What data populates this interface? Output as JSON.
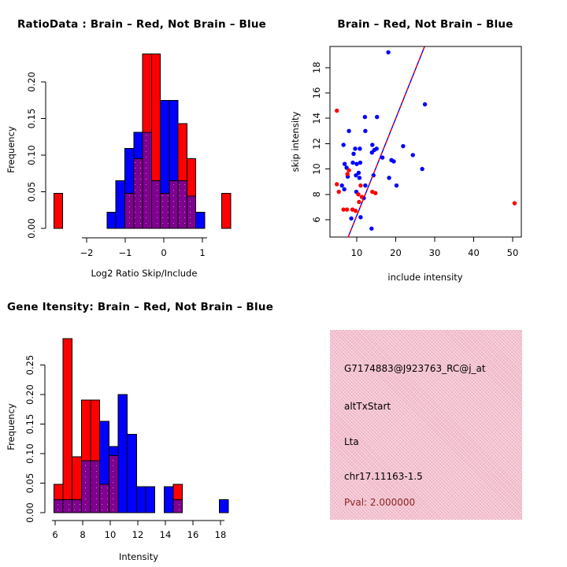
{
  "figure": {
    "background": "#FFFFFF",
    "legend_note": "Brain = red, Not Brain = blue, overlap shown purple"
  },
  "chart_data": [
    {
      "id": "ratio_histogram",
      "type": "bar",
      "subtype": "overlaid-histogram",
      "title": "RatioData : Brain – Red, Not Brain – Blue",
      "xlabel": "Log2 Ratio Skip/Include",
      "ylabel": "Frequency",
      "xlim": [
        -2.95,
        1.85
      ],
      "ylim": [
        0,
        0.24
      ],
      "x_ticks": [
        "−2",
        "−1",
        "0",
        "1"
      ],
      "x_tick_values": [
        -2,
        -1,
        0,
        1
      ],
      "y_ticks": [
        "0.00",
        "0.05",
        "0.10",
        "0.15",
        "0.20"
      ],
      "y_tick_values": [
        0,
        0.05,
        0.1,
        0.15,
        0.2
      ],
      "colors": {
        "red": "#FF0000",
        "blue": "#0000FF",
        "overlap": "#800090"
      },
      "bins": [
        {
          "x0": -2.85,
          "x1": -2.62,
          "red": 0.048,
          "blue": 0
        },
        {
          "x0": -1.47,
          "x1": -1.24,
          "red": 0,
          "blue": 0.022
        },
        {
          "x0": -1.24,
          "x1": -1.01,
          "red": 0,
          "blue": 0.065
        },
        {
          "x0": -1.01,
          "x1": -0.78,
          "red": 0.048,
          "blue": 0.109
        },
        {
          "x0": -0.78,
          "x1": -0.55,
          "red": 0.095,
          "blue": 0.131
        },
        {
          "x0": -0.55,
          "x1": -0.32,
          "red": 0.238,
          "blue": 0.131
        },
        {
          "x0": -0.32,
          "x1": -0.09,
          "red": 0.238,
          "blue": 0.065
        },
        {
          "x0": -0.09,
          "x1": 0.14,
          "red": 0.048,
          "blue": 0.175
        },
        {
          "x0": 0.14,
          "x1": 0.37,
          "red": 0.065,
          "blue": 0.175
        },
        {
          "x0": 0.37,
          "x1": 0.6,
          "red": 0.143,
          "blue": 0.065
        },
        {
          "x0": 0.6,
          "x1": 0.83,
          "red": 0.095,
          "blue": 0.044
        },
        {
          "x0": 0.83,
          "x1": 1.06,
          "red": 0,
          "blue": 0.022
        },
        {
          "x0": 1.5,
          "x1": 1.73,
          "red": 0.048,
          "blue": 0
        }
      ]
    },
    {
      "id": "intensity_scatter",
      "type": "scatter",
      "title": "Brain – Red, Not Brain – Blue",
      "xlabel": "include intensity",
      "ylabel": "skip intensity",
      "xlim": [
        3,
        53
      ],
      "ylim": [
        4.6,
        19.7
      ],
      "x_ticks": [
        "10",
        "20",
        "30",
        "40",
        "50"
      ],
      "x_tick_values": [
        10,
        20,
        30,
        40,
        50
      ],
      "y_ticks": [
        "6",
        "8",
        "10",
        "12",
        "14",
        "16",
        "18"
      ],
      "y_tick_values": [
        6,
        8,
        10,
        12,
        14,
        16,
        18
      ],
      "colors": {
        "red": "#FF0000",
        "blue": "#0000FF"
      },
      "series": [
        {
          "name": "Not Brain",
          "color": "#0000FF",
          "points": [
            [
              18.1,
              19.2
            ],
            [
              27.5,
              15.1
            ],
            [
              12.1,
              14.1
            ],
            [
              15.2,
              14.1
            ],
            [
              8,
              13
            ],
            [
              12.2,
              13
            ],
            [
              6.6,
              11.9
            ],
            [
              14,
              11.9
            ],
            [
              21.9,
              11.8
            ],
            [
              9.6,
              11.6
            ],
            [
              10.8,
              11.6
            ],
            [
              15.1,
              11.6
            ],
            [
              14.5,
              11.5
            ],
            [
              13.9,
              11.3
            ],
            [
              9.2,
              11.2
            ],
            [
              24.4,
              11.1
            ],
            [
              16.6,
              10.9
            ],
            [
              18.9,
              10.7
            ],
            [
              19.5,
              10.6
            ],
            [
              9,
              10.5
            ],
            [
              10.9,
              10.5
            ],
            [
              6.9,
              10.4
            ],
            [
              10,
              10.4
            ],
            [
              7.4,
              10.1
            ],
            [
              26.8,
              10
            ],
            [
              10.5,
              9.7
            ],
            [
              9.8,
              9.5
            ],
            [
              14.3,
              9.5
            ],
            [
              7.7,
              9.4
            ],
            [
              10.7,
              9.3
            ],
            [
              18.3,
              9.3
            ],
            [
              6.2,
              8.7
            ],
            [
              12.2,
              8.7
            ],
            [
              20.2,
              8.7
            ],
            [
              6.8,
              8.4
            ],
            [
              9.9,
              8.2
            ],
            [
              11.8,
              7.7
            ],
            [
              8.6,
              6.1
            ],
            [
              11,
              6.2
            ],
            [
              13.8,
              5.3
            ]
          ]
        },
        {
          "name": "Brain",
          "color": "#FF0000",
          "points": [
            [
              4.9,
              14.6
            ],
            [
              8,
              9.9
            ],
            [
              7.6,
              9.6
            ],
            [
              4.9,
              8.8
            ],
            [
              5.4,
              8.2
            ],
            [
              11,
              8.7
            ],
            [
              10.4,
              8
            ],
            [
              11.3,
              7.8
            ],
            [
              14,
              8.2
            ],
            [
              14.8,
              8.1
            ],
            [
              10.6,
              7.4
            ],
            [
              9.7,
              6.7
            ],
            [
              8.9,
              6.8
            ],
            [
              6.6,
              6.8
            ],
            [
              7.5,
              6.8
            ],
            [
              50.5,
              7.3
            ]
          ]
        }
      ],
      "fit_line": {
        "x1": 7.8,
        "y1": 4.63,
        "x2": 27.4,
        "y2": 19.66,
        "colors": [
          "#0000FF",
          "#FF0000"
        ]
      }
    },
    {
      "id": "gene_intensity_histogram",
      "type": "bar",
      "subtype": "overlaid-histogram",
      "title": "Gene Itensity: Brain – Red, Not Brain – Blue",
      "xlabel": "Intensity",
      "ylabel": "Frequency",
      "xlim": [
        5.5,
        19.2
      ],
      "ylim": [
        0,
        0.3
      ],
      "x_ticks": [
        "6",
        "8",
        "10",
        "12",
        "14",
        "16",
        "18"
      ],
      "x_tick_values": [
        6,
        8,
        10,
        12,
        14,
        16,
        18
      ],
      "y_ticks": [
        "0.00",
        "0.05",
        "0.10",
        "0.15",
        "0.20",
        "0.25"
      ],
      "y_tick_values": [
        0,
        0.05,
        0.1,
        0.15,
        0.2,
        0.25
      ],
      "colors": {
        "red": "#FF0000",
        "blue": "#0000FF",
        "overlap": "#800090"
      },
      "bins": [
        {
          "x0": 5.9,
          "x1": 6.57,
          "red": 0.048,
          "blue": 0.022
        },
        {
          "x0": 6.57,
          "x1": 7.23,
          "red": 0.295,
          "blue": 0.022
        },
        {
          "x0": 7.23,
          "x1": 7.9,
          "red": 0.095,
          "blue": 0.022
        },
        {
          "x0": 7.9,
          "x1": 8.57,
          "red": 0.191,
          "blue": 0.088
        },
        {
          "x0": 8.57,
          "x1": 9.23,
          "red": 0.191,
          "blue": 0.088
        },
        {
          "x0": 9.23,
          "x1": 9.9,
          "red": 0.048,
          "blue": 0.155
        },
        {
          "x0": 9.9,
          "x1": 10.57,
          "red": 0.097,
          "blue": 0.112
        },
        {
          "x0": 10.57,
          "x1": 11.23,
          "red": 0,
          "blue": 0.2
        },
        {
          "x0": 11.23,
          "x1": 11.9,
          "red": 0,
          "blue": 0.133
        },
        {
          "x0": 11.9,
          "x1": 12.57,
          "red": 0,
          "blue": 0.044
        },
        {
          "x0": 12.57,
          "x1": 13.23,
          "red": 0,
          "blue": 0.044
        },
        {
          "x0": 13.9,
          "x1": 14.57,
          "red": 0,
          "blue": 0.044
        },
        {
          "x0": 14.57,
          "x1": 15.23,
          "red": 0.048,
          "blue": 0.022
        },
        {
          "x0": 17.9,
          "x1": 18.57,
          "red": 0,
          "blue": 0.022
        }
      ]
    },
    {
      "id": "info_panel",
      "type": "table",
      "background": "#F2BFCD",
      "lines": [
        {
          "text": "G7174883@J923763_RC@j_at",
          "color": "#000000"
        },
        {
          "text": "altTxStart",
          "color": "#000000"
        },
        {
          "text": "Lta",
          "color": "#000000"
        },
        {
          "text": "chr17.11163-1.5",
          "color": "#000000"
        },
        {
          "text": "Pval: 2.000000",
          "color": "#8B2525"
        }
      ]
    }
  ]
}
